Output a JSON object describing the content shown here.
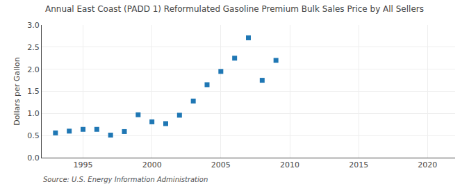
{
  "chart_data": {
    "type": "scatter",
    "title": "Annual East Coast (PADD 1) Reformulated Gasoline Premium Bulk Sales Price by All Sellers",
    "ylabel": "Dollars per Gallon",
    "annotations": [
      "Source: U.S. Energy Information Administration"
    ],
    "marker": "square",
    "x": [
      1993,
      1994,
      1995,
      1996,
      1997,
      1998,
      1999,
      2000,
      2001,
      2002,
      2003,
      2004,
      2005,
      2006,
      2007,
      2008,
      2009
    ],
    "values": [
      0.56,
      0.6,
      0.64,
      0.64,
      0.51,
      0.59,
      0.97,
      0.81,
      0.77,
      0.96,
      1.28,
      1.65,
      1.95,
      2.25,
      2.71,
      1.75,
      2.2
    ],
    "xlim": [
      1992,
      2022
    ],
    "ylim": [
      0.0,
      3.0
    ],
    "xticks": [
      1995,
      2000,
      2005,
      2010,
      2015,
      2020
    ],
    "yticks": [
      {
        "value": 0.0,
        "label": "0.0"
      },
      0.5,
      {
        "value": 1.0,
        "label": "1.0"
      },
      1.5,
      {
        "value": 2.0,
        "label": "2.0"
      },
      2.5,
      {
        "value": 3.0,
        "label": "3.0"
      }
    ],
    "grid": true
  }
}
